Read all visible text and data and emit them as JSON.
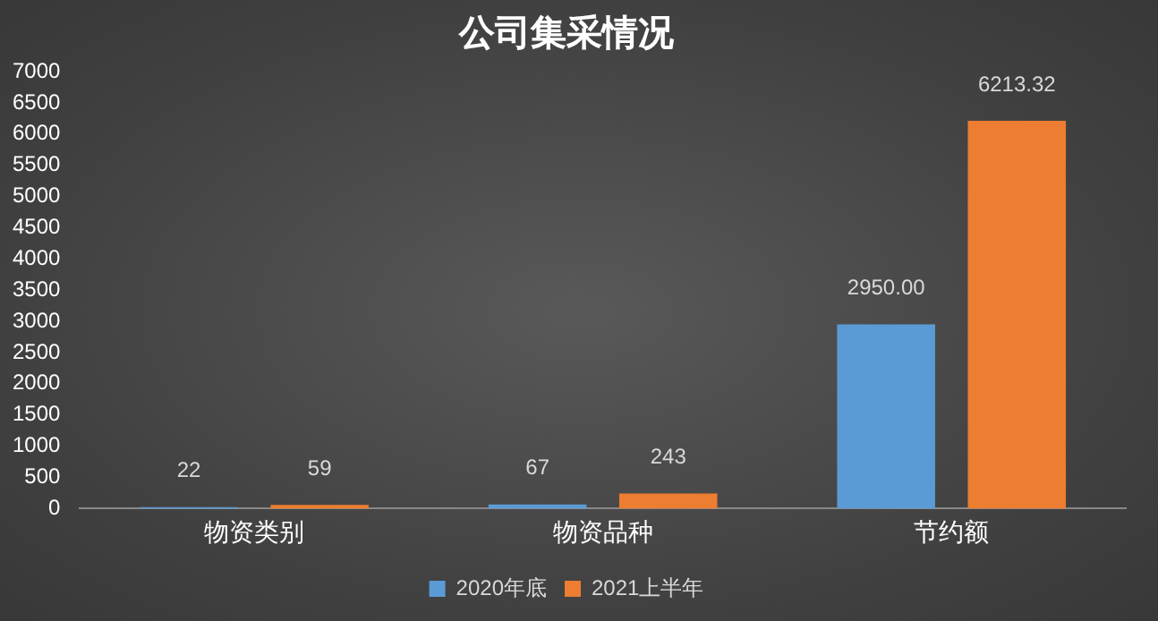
{
  "chart_data": {
    "type": "bar",
    "title": "公司集采情况",
    "categories": [
      "物资类别",
      "物资品种",
      "节约额"
    ],
    "series": [
      {
        "name": "2020年底",
        "color": "#5b9bd5",
        "values": [
          22,
          67,
          2950
        ],
        "value_labels": [
          "22",
          "67",
          "2950.00"
        ]
      },
      {
        "name": "2021上半年",
        "color": "#ed7d31",
        "values": [
          59,
          243,
          6213.32
        ],
        "value_labels": [
          "59",
          "243",
          "6213.32"
        ]
      }
    ],
    "ylim": [
      0,
      7000
    ],
    "yticks": [
      0,
      500,
      1000,
      1500,
      2000,
      2500,
      3000,
      3500,
      4000,
      4500,
      5000,
      5500,
      6000,
      6500,
      7000
    ],
    "grid": false,
    "legend": "bottom"
  }
}
